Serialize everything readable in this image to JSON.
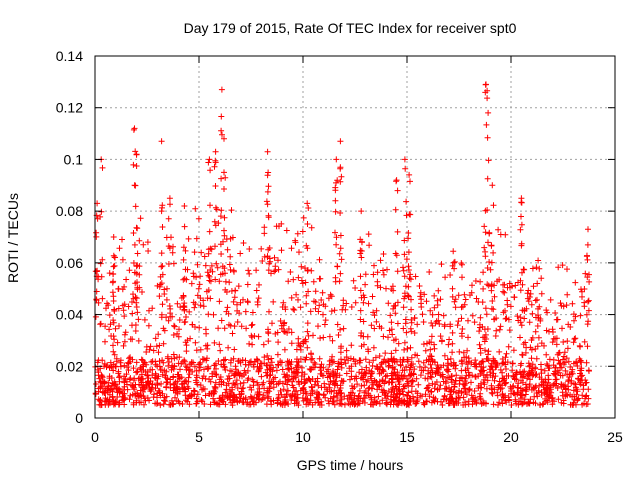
{
  "chart_data": {
    "type": "scatter",
    "title": "Day 179 of 2015, Rate Of TEC Index for receiver spt0",
    "xlabel": "GPS time / hours",
    "ylabel": "ROTI / TECUs",
    "xlim": [
      0,
      25
    ],
    "ylim": [
      0,
      0.14
    ],
    "x_ticks": [
      0,
      5,
      10,
      15,
      20,
      25
    ],
    "x_tick_labels": [
      "0",
      "5",
      "10",
      "15",
      "20",
      "25"
    ],
    "y_ticks": [
      0,
      0.02,
      0.04,
      0.06,
      0.08,
      0.1,
      0.12,
      0.14
    ],
    "y_tick_labels": [
      "0",
      "0.02",
      "0.04",
      "0.06",
      "0.08",
      "0.1",
      "0.12",
      "0.14"
    ],
    "grid": true,
    "marker": "+",
    "color": "#ff0000",
    "series": [
      {
        "name": "ROTI",
        "peaks": [
          {
            "x": 0.1,
            "y": 0.083
          },
          {
            "x": 0.3,
            "y": 0.1
          },
          {
            "x": 0.9,
            "y": 0.07
          },
          {
            "x": 1.9,
            "y": 0.112
          },
          {
            "x": 2.0,
            "y": 0.102
          },
          {
            "x": 3.2,
            "y": 0.107
          },
          {
            "x": 3.6,
            "y": 0.085
          },
          {
            "x": 4.3,
            "y": 0.082
          },
          {
            "x": 5.5,
            "y": 0.1
          },
          {
            "x": 5.8,
            "y": 0.103
          },
          {
            "x": 6.1,
            "y": 0.127
          },
          {
            "x": 6.2,
            "y": 0.108
          },
          {
            "x": 8.3,
            "y": 0.103
          },
          {
            "x": 10.2,
            "y": 0.083
          },
          {
            "x": 11.6,
            "y": 0.1
          },
          {
            "x": 11.8,
            "y": 0.107
          },
          {
            "x": 12.8,
            "y": 0.08
          },
          {
            "x": 14.5,
            "y": 0.092
          },
          {
            "x": 14.9,
            "y": 0.1
          },
          {
            "x": 15.1,
            "y": 0.094
          },
          {
            "x": 18.8,
            "y": 0.129
          },
          {
            "x": 18.9,
            "y": 0.118
          },
          {
            "x": 19.1,
            "y": 0.09
          },
          {
            "x": 20.5,
            "y": 0.085
          },
          {
            "x": 23.7,
            "y": 0.073
          }
        ],
        "envelope": [
          {
            "x": 0,
            "y": 0.055
          },
          {
            "x": 1,
            "y": 0.06
          },
          {
            "x": 2,
            "y": 0.075
          },
          {
            "x": 3,
            "y": 0.062
          },
          {
            "x": 4,
            "y": 0.07
          },
          {
            "x": 5,
            "y": 0.08
          },
          {
            "x": 6,
            "y": 0.09
          },
          {
            "x": 7,
            "y": 0.065
          },
          {
            "x": 8,
            "y": 0.085
          },
          {
            "x": 9,
            "y": 0.07
          },
          {
            "x": 10,
            "y": 0.075
          },
          {
            "x": 11,
            "y": 0.065
          },
          {
            "x": 12,
            "y": 0.06
          },
          {
            "x": 13,
            "y": 0.07
          },
          {
            "x": 14,
            "y": 0.06
          },
          {
            "x": 15,
            "y": 0.075
          },
          {
            "x": 16,
            "y": 0.055
          },
          {
            "x": 17,
            "y": 0.06
          },
          {
            "x": 18,
            "y": 0.06
          },
          {
            "x": 19,
            "y": 0.075
          },
          {
            "x": 20,
            "y": 0.065
          },
          {
            "x": 21,
            "y": 0.06
          },
          {
            "x": 22,
            "y": 0.055
          },
          {
            "x": 23,
            "y": 0.055
          },
          {
            "x": 23.7,
            "y": 0.065
          }
        ],
        "x_range": [
          0,
          23.75
        ],
        "baseline_range": [
          0.005,
          0.015
        ]
      }
    ]
  }
}
